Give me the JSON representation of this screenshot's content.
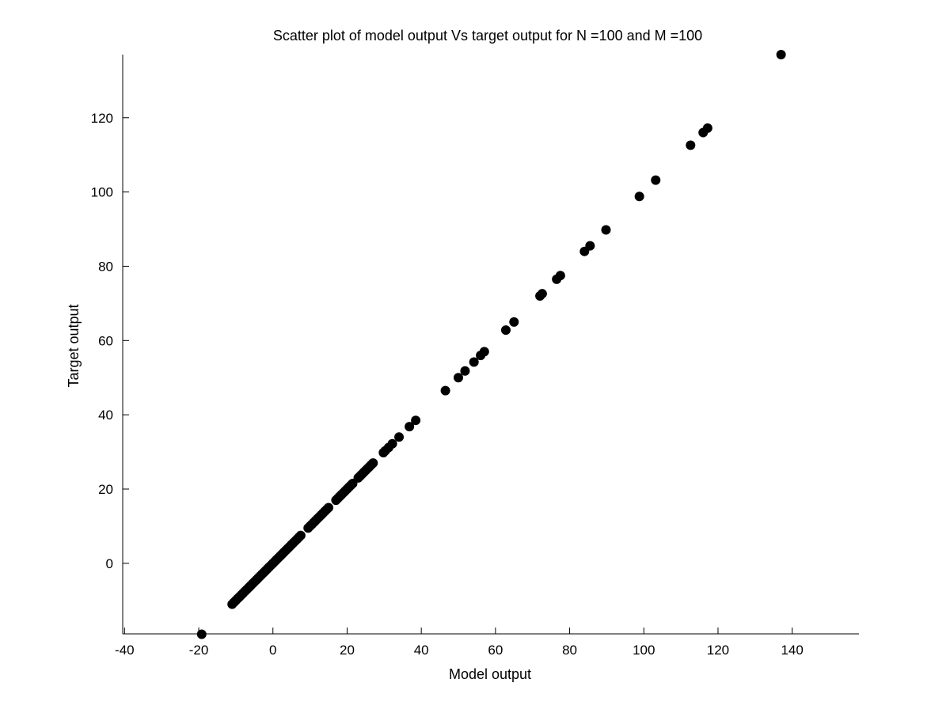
{
  "chart_data": {
    "type": "scatter",
    "title": "Scatter plot of model output Vs target output for N =100 and M =100",
    "xlabel": "Model output",
    "ylabel": "Target output",
    "xlim": [
      -40.5,
      158
    ],
    "ylim": [
      -19,
      137
    ],
    "xticks": [
      -40,
      -20,
      0,
      20,
      40,
      60,
      80,
      100,
      120,
      140
    ],
    "yticks": [
      0,
      20,
      40,
      60,
      80,
      100,
      120
    ],
    "grid": false,
    "marker_color": "#000000",
    "series": [
      {
        "points": [
          [
            -19.2,
            -19.1
          ],
          [
            -11.0,
            -11.0
          ],
          [
            -10.5,
            -10.5
          ],
          [
            -10.0,
            -10.0
          ],
          [
            -9.5,
            -9.5
          ],
          [
            -9.0,
            -9.0
          ],
          [
            -8.5,
            -8.5
          ],
          [
            -8.0,
            -8.0
          ],
          [
            -7.5,
            -7.5
          ],
          [
            -7.0,
            -7.0
          ],
          [
            -6.5,
            -6.5
          ],
          [
            -6.0,
            -6.0
          ],
          [
            -5.5,
            -5.5
          ],
          [
            -5.0,
            -5.0
          ],
          [
            -4.5,
            -4.5
          ],
          [
            -4.0,
            -4.0
          ],
          [
            -3.5,
            -3.5
          ],
          [
            -3.0,
            -3.0
          ],
          [
            -2.5,
            -2.5
          ],
          [
            -2.0,
            -2.0
          ],
          [
            -1.5,
            -1.5
          ],
          [
            -1.0,
            -1.0
          ],
          [
            -0.5,
            -0.5
          ],
          [
            0.0,
            0.0
          ],
          [
            0.5,
            0.5
          ],
          [
            1.0,
            1.0
          ],
          [
            1.5,
            1.5
          ],
          [
            2.0,
            2.0
          ],
          [
            2.5,
            2.5
          ],
          [
            3.0,
            3.0
          ],
          [
            3.5,
            3.5
          ],
          [
            4.0,
            4.0
          ],
          [
            4.5,
            4.5
          ],
          [
            5.0,
            5.0
          ],
          [
            5.5,
            5.5
          ],
          [
            6.0,
            6.0
          ],
          [
            6.5,
            6.5
          ],
          [
            7.0,
            7.0
          ],
          [
            7.5,
            7.5
          ],
          [
            9.5,
            9.5
          ],
          [
            10.0,
            10.0
          ],
          [
            10.5,
            10.5
          ],
          [
            11.0,
            11.0
          ],
          [
            11.5,
            11.5
          ],
          [
            12.0,
            12.0
          ],
          [
            12.5,
            12.5
          ],
          [
            13.0,
            13.0
          ],
          [
            13.5,
            13.5
          ],
          [
            14.0,
            14.0
          ],
          [
            14.5,
            14.5
          ],
          [
            15.0,
            15.0
          ],
          [
            17.0,
            17.0
          ],
          [
            17.5,
            17.5
          ],
          [
            18.0,
            18.0
          ],
          [
            18.5,
            18.5
          ],
          [
            19.0,
            19.0
          ],
          [
            19.5,
            19.5
          ],
          [
            20.0,
            20.0
          ],
          [
            20.5,
            20.5
          ],
          [
            21.0,
            21.0
          ],
          [
            21.5,
            21.5
          ],
          [
            23.0,
            23.0
          ],
          [
            23.5,
            23.5
          ],
          [
            24.0,
            24.0
          ],
          [
            24.5,
            24.5
          ],
          [
            25.0,
            25.0
          ],
          [
            25.5,
            25.5
          ],
          [
            26.0,
            26.0
          ],
          [
            26.5,
            26.5
          ],
          [
            27.0,
            27.0
          ],
          [
            29.8,
            29.8
          ],
          [
            30.3,
            30.3
          ],
          [
            31.2,
            31.2
          ],
          [
            32.2,
            32.2
          ],
          [
            34.0,
            34.0
          ],
          [
            36.8,
            36.8
          ],
          [
            38.5,
            38.5
          ],
          [
            46.5,
            46.5
          ],
          [
            50.0,
            50.0
          ],
          [
            51.8,
            51.8
          ],
          [
            54.2,
            54.2
          ],
          [
            56.0,
            56.0
          ],
          [
            57.0,
            57.0
          ],
          [
            62.8,
            62.8
          ],
          [
            65.0,
            65.0
          ],
          [
            72.0,
            72.0
          ],
          [
            72.6,
            72.6
          ],
          [
            76.5,
            76.5
          ],
          [
            77.5,
            77.5
          ],
          [
            84.0,
            84.0
          ],
          [
            85.5,
            85.5
          ],
          [
            89.8,
            89.8
          ],
          [
            98.8,
            98.8
          ],
          [
            103.2,
            103.2
          ],
          [
            112.6,
            112.6
          ],
          [
            116.0,
            116.0
          ],
          [
            117.2,
            117.2
          ],
          [
            137.0,
            137.0
          ]
        ]
      }
    ]
  }
}
